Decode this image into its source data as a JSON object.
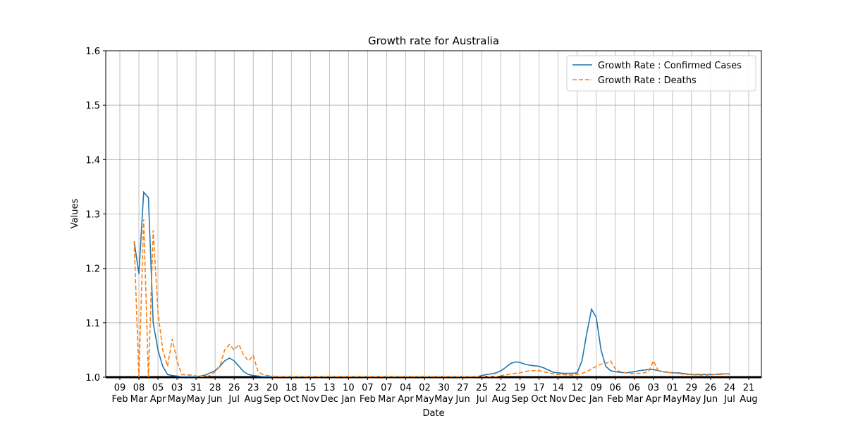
{
  "chart_data": {
    "type": "line",
    "title": "Growth rate for Australia",
    "xlabel": "Date",
    "ylabel": "Values",
    "categories": [
      "09 Feb",
      null,
      null,
      null,
      "08 Mar",
      null,
      null,
      null,
      "05 Apr",
      null,
      null,
      null,
      "03 May",
      null,
      null,
      null,
      "31 May",
      null,
      null,
      null,
      "28 Jun",
      null,
      null,
      null,
      "26 Jul",
      null,
      null,
      null,
      "23 Aug",
      null,
      null,
      null,
      "20 Sep",
      null,
      null,
      null,
      "18 Oct",
      null,
      null,
      null,
      "15 Nov",
      null,
      null,
      null,
      "13 Dec",
      null,
      null,
      null,
      "10 Jan",
      null,
      null,
      null,
      "07 Feb",
      null,
      null,
      null,
      "07 Mar",
      null,
      null,
      null,
      "04 Apr",
      null,
      null,
      null,
      "02 May",
      null,
      null,
      null,
      "30 May",
      null,
      null,
      null,
      "27 Jun",
      null,
      null,
      null,
      "25 Jul",
      null,
      null,
      null,
      "22 Aug",
      null,
      null,
      null,
      "19 Sep",
      null,
      null,
      null,
      "17 Oct",
      null,
      null,
      null,
      "14 Nov",
      null,
      null,
      null,
      "12 Dec",
      null,
      null,
      null,
      "09 Jan",
      null,
      null,
      null,
      "06 Feb",
      null,
      null,
      null,
      "06 Mar",
      null,
      null,
      null,
      "03 Apr",
      null,
      null,
      null,
      "01 May",
      null,
      null,
      null,
      "29 May",
      null,
      null,
      null,
      "26 Jun",
      null,
      null,
      null,
      "24 Jul",
      null,
      null,
      null,
      "21 Aug"
    ],
    "series": [
      {
        "name": "Growth Rate : Confirmed Cases",
        "color": "#1f77b4",
        "dash": false,
        "values": [
          null,
          null,
          null,
          1.25,
          1.19,
          1.34,
          1.33,
          1.1,
          1.05,
          1.02,
          1.005,
          1.003,
          1.002,
          1.001,
          1.001,
          1.001,
          1.001,
          1.002,
          1.004,
          1.008,
          1.012,
          1.02,
          1.03,
          1.035,
          1.03,
          1.02,
          1.01,
          1.005,
          1.003,
          1.002,
          1.001,
          1.001,
          1.001,
          1.001,
          1.001,
          1.001,
          1.001,
          1.001,
          1.001,
          1.001,
          1.001,
          1.001,
          1.001,
          1.001,
          1.001,
          1.001,
          1.001,
          1.001,
          1.001,
          1.001,
          1.001,
          1.001,
          1.001,
          1.001,
          1.001,
          1.001,
          1.001,
          1.001,
          1.001,
          1.001,
          1.001,
          1.001,
          1.001,
          1.001,
          1.001,
          1.001,
          1.001,
          1.001,
          1.001,
          1.001,
          1.001,
          1.001,
          1.001,
          1.001,
          1.001,
          1.001,
          1.003,
          1.005,
          1.006,
          1.008,
          1.012,
          1.018,
          1.025,
          1.028,
          1.027,
          1.024,
          1.022,
          1.021,
          1.02,
          1.017,
          1.013,
          1.009,
          1.008,
          1.007,
          1.007,
          1.007,
          1.008,
          1.03,
          1.08,
          1.125,
          1.11,
          1.05,
          1.02,
          1.012,
          1.01,
          1.009,
          1.008,
          1.009,
          1.01,
          1.012,
          1.013,
          1.014,
          1.014,
          1.012,
          1.01,
          1.009,
          1.008,
          1.008,
          1.007,
          1.006,
          1.005,
          1.005,
          1.005,
          1.005,
          1.005,
          1.005,
          1.006,
          1.006,
          1.006,
          null,
          null,
          null,
          null
        ]
      },
      {
        "name": "Growth Rate : Deaths",
        "color": "#ff7f0e",
        "dash": true,
        "values": [
          null,
          null,
          null,
          1.25,
          1.0,
          1.29,
          1.0,
          1.27,
          1.12,
          1.05,
          1.02,
          1.07,
          1.03,
          1.005,
          1.004,
          1.004,
          1.002,
          1.001,
          1.001,
          1.003,
          1.01,
          1.02,
          1.05,
          1.06,
          1.05,
          1.06,
          1.04,
          1.03,
          1.04,
          1.01,
          1.005,
          1.003,
          1.002,
          1.001,
          1.001,
          1.001,
          1.001,
          1.001,
          1.001,
          1.001,
          1.001,
          1.001,
          1.001,
          1.001,
          1.001,
          1.001,
          1.001,
          1.001,
          1.001,
          1.001,
          1.001,
          1.001,
          1.001,
          1.001,
          1.001,
          1.001,
          1.001,
          1.001,
          1.001,
          1.001,
          1.001,
          1.001,
          1.001,
          1.001,
          1.001,
          1.001,
          1.001,
          1.001,
          1.001,
          1.001,
          1.001,
          1.001,
          1.001,
          1.001,
          1.001,
          1.001,
          1.001,
          1.001,
          1.001,
          1.001,
          1.003,
          1.004,
          1.006,
          1.007,
          1.008,
          1.01,
          1.012,
          1.012,
          1.012,
          1.01,
          1.008,
          1.006,
          1.005,
          1.005,
          1.004,
          1.004,
          1.005,
          1.007,
          1.01,
          1.015,
          1.02,
          1.024,
          1.025,
          1.03,
          1.015,
          1.01,
          1.008,
          1.007,
          1.006,
          1.007,
          1.008,
          1.01,
          1.03,
          1.012,
          1.01,
          1.009,
          1.008,
          1.007,
          1.006,
          1.005,
          1.005,
          1.004,
          1.004,
          1.004,
          1.004,
          1.005,
          1.005,
          1.006,
          1.007,
          null,
          null,
          null,
          null
        ]
      }
    ],
    "ylim": [
      1.0,
      1.6
    ],
    "yticks": [
      {
        "value": 1.0,
        "label": "1.0"
      },
      1.1,
      1.2,
      1.3,
      1.4,
      1.5,
      1.6
    ],
    "grid": true,
    "legend": "upper right"
  }
}
